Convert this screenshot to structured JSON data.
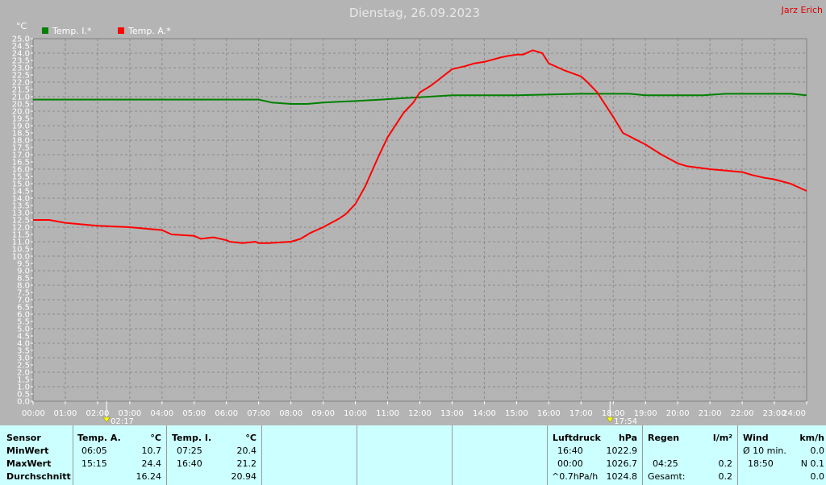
{
  "header": {
    "title": "Dienstag, 26.09.2023",
    "author": "Jarz Erich"
  },
  "colors": {
    "indoor": "#008000",
    "outdoor": "#ff0000",
    "background": "#b4b4b4",
    "panel": "#ccffff"
  },
  "chart_data": {
    "type": "line",
    "ylabel": "°C",
    "ylim": [
      0,
      25
    ],
    "xlim": [
      0,
      24
    ],
    "grid": true,
    "legend_position": "top-left",
    "x_ticks": [
      "00:00",
      "01:00",
      "02:00",
      "03:00",
      "04:00",
      "05:00",
      "06:00",
      "07:00",
      "08:00",
      "09:00",
      "10:00",
      "11:00",
      "12:00",
      "13:00",
      "14:00",
      "15:00",
      "16:00",
      "17:00",
      "18:00",
      "19:00",
      "20:00",
      "21:00",
      "22:00",
      "23:00",
      "24:00"
    ],
    "y_ticks": [
      "0.0",
      "0.5",
      "1.0",
      "1.5",
      "2.0",
      "2.5",
      "3.0",
      "3.5",
      "4.0",
      "4.5",
      "5.0",
      "5.5",
      "6.0",
      "6.5",
      "7.0",
      "7.5",
      "8.0",
      "8.5",
      "9.0",
      "9.5",
      "10.0",
      "10.5",
      "11.0",
      "11.5",
      "12.0",
      "12.5",
      "13.0",
      "13.5",
      "14.0",
      "14.5",
      "15.0",
      "15.5",
      "16.0",
      "16.5",
      "17.0",
      "17.5",
      "18.0",
      "18.5",
      "19.0",
      "19.5",
      "20.0",
      "20.5",
      "21.0",
      "21.5",
      "22.0",
      "22.5",
      "23.0",
      "23.5",
      "24.0",
      "24.5",
      "25.0"
    ],
    "markers": [
      {
        "label": "02:17",
        "x": 2.28,
        "icon": "sunrise-icon"
      },
      {
        "label": "17:54",
        "x": 17.9,
        "icon": "sunset-icon"
      }
    ],
    "series": [
      {
        "name": "Temp. I.*",
        "color": "#008000",
        "x": [
          0,
          7,
          7.4,
          8,
          8.5,
          9,
          10,
          10.8,
          11.5,
          12.3,
          13,
          15,
          17,
          18,
          18.5,
          19,
          20,
          20.8,
          21.5,
          23,
          23.5,
          24
        ],
        "y": [
          20.8,
          20.8,
          20.6,
          20.5,
          20.5,
          20.6,
          20.7,
          20.8,
          20.9,
          21.0,
          21.1,
          21.1,
          21.2,
          21.2,
          21.2,
          21.1,
          21.1,
          21.1,
          21.2,
          21.2,
          21.2,
          21.1
        ]
      },
      {
        "name": "Temp. A.*",
        "color": "#ff0000",
        "x": [
          0,
          0.5,
          1,
          2,
          3,
          4,
          4.3,
          5,
          5.2,
          5.6,
          6,
          6.1,
          6.5,
          6.9,
          7,
          7.3,
          8,
          8.3,
          8.6,
          9,
          9.5,
          9.7,
          10,
          10.3,
          10.7,
          11,
          11.5,
          11.8,
          12,
          12.3,
          12.6,
          13,
          13.4,
          13.7,
          14,
          14.5,
          14.7,
          15,
          15.2,
          15.5,
          15.8,
          16,
          16.5,
          17,
          17.2,
          17.5,
          18,
          18.3,
          19,
          19.5,
          20,
          20.3,
          21,
          21.5,
          22,
          22.3,
          22.7,
          23,
          23.5,
          24
        ],
        "y": [
          12.5,
          12.5,
          12.3,
          12.1,
          12.0,
          11.8,
          11.5,
          11.4,
          11.2,
          11.3,
          11.1,
          11.0,
          10.9,
          11.0,
          10.9,
          10.9,
          11.0,
          11.2,
          11.6,
          12.0,
          12.6,
          12.9,
          13.6,
          14.8,
          16.8,
          18.2,
          19.9,
          20.6,
          21.3,
          21.7,
          22.2,
          22.9,
          23.1,
          23.3,
          23.4,
          23.7,
          23.8,
          23.9,
          23.9,
          24.2,
          24.0,
          23.3,
          22.8,
          22.4,
          22.0,
          21.3,
          19.6,
          18.5,
          17.7,
          17.0,
          16.4,
          16.2,
          16.0,
          15.9,
          15.8,
          15.6,
          15.4,
          15.3,
          15.0,
          14.5
        ]
      }
    ]
  },
  "panel": {
    "labels": {
      "sensor": "Sensor",
      "min": "MinWert",
      "max": "MaxWert",
      "avg": "Durchschnitt"
    },
    "temp_a": {
      "title": "Temp. A.",
      "unit": "°C",
      "min_time": "06:05",
      "min_val": "10.7",
      "max_time": "15:15",
      "max_val": "24.4",
      "avg": "16.24"
    },
    "temp_i": {
      "title": "Temp. I.",
      "unit": "°C",
      "min_time": "07:25",
      "min_val": "20.4",
      "max_time": "16:40",
      "max_val": "21.2",
      "avg": "20.94"
    },
    "pressure": {
      "title": "Luftdruck",
      "unit": "hPa",
      "r1_time": "16:40",
      "r1_val": "1022.9",
      "r2_time": "00:00",
      "r2_val": "1026.7",
      "r3_label": "^0.7hPa/h",
      "r3_val": "1024.8"
    },
    "rain": {
      "title": "Regen",
      "unit": "l/m²",
      "r2_time": "04:25",
      "r2_val": "0.2",
      "r3_label": "Gesamt:",
      "r3_val": "0.2"
    },
    "wind": {
      "title": "Wind",
      "unit": "km/h",
      "r1_label": "Ø 10 min.",
      "r1_val": "0.0",
      "r2_time": "18:50",
      "r2_val": "N 0.1",
      "r3_val": "0.0"
    }
  }
}
